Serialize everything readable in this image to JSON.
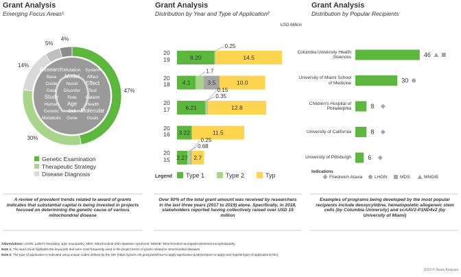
{
  "chart_data": [
    {
      "type": "pie",
      "title": "Grant Analysis",
      "subtitle": "Emerging Focus Areas¹",
      "categories": [
        "Genetic Examination",
        "Therapeutic Strategy",
        "Disease Diagnosis",
        null,
        null
      ],
      "values": [
        47,
        30,
        14,
        5,
        4
      ],
      "value_labels": [
        "47%",
        "30%",
        "14%",
        "5%",
        "4%"
      ],
      "colors": [
        "#5cb83c",
        "#a8d58a",
        "#d9d9d9",
        "#bfbfbf",
        "#8c8c8c"
      ],
      "word_cloud": [
        "Research",
        "Mutation",
        "System",
        "Base",
        "Model",
        "Affect",
        "Oxide",
        "Novel",
        "Effect",
        "Data",
        "Disorder",
        "Test",
        "Study",
        "Role",
        "Patient",
        "Human",
        "Age",
        "Health",
        "Genetic",
        "Cell",
        "Molecular",
        "Metabolic",
        "Gene",
        "Goals"
      ]
    },
    {
      "type": "bar",
      "horizontal": true,
      "stacked": true,
      "title": "Grant Analysis",
      "subtitle": "Distribution by Year and Type of Application²",
      "unit_label": "USD Million",
      "legend_title": "Legend",
      "categories": [
        "2019",
        "2018",
        "2017",
        "2016",
        "2015"
      ],
      "xlim": [
        0,
        24
      ],
      "series": [
        {
          "name": "Type 1",
          "color": "#5cb83c",
          "values": [
            8.2,
            4.1,
            6.21,
            3.22,
            2.27
          ],
          "value_labels": [
            "8.20",
            "4.1",
            "6.21",
            "3.22",
            "2.27"
          ]
        },
        {
          "name": "Type 2",
          "color": "#a8d58a",
          "values": [
            0.25,
            1.7,
            0.35,
            null,
            0.68
          ],
          "value_labels": [
            "0.25",
            "1.7",
            "0.35",
            null,
            "0.68"
          ]
        },
        {
          "name": null,
          "color": "#a6a6a6",
          "values": [
            null,
            3.5,
            0.15,
            null,
            0.25
          ],
          "value_labels": [
            null,
            "3.5",
            "0.15",
            null,
            "0.25"
          ]
        },
        {
          "name": "Typ",
          "color": "#ffd44f",
          "values": [
            14.5,
            10,
            12.8,
            11.5,
            2.7
          ],
          "value_labels": [
            "14.5",
            "10.0",
            "12.8",
            "11.5",
            "2.7"
          ]
        }
      ]
    },
    {
      "type": "bar",
      "horizontal": true,
      "title": "Grant Analysis",
      "subtitle": "Distribution by Popular Recipients",
      "categories": [
        "Columbia University Health Sciences",
        "University of Miami School of Medicine",
        "Children's Hospital of Philadelphia",
        "University of California",
        "University of Pittsburgh"
      ],
      "values": [
        46,
        30,
        8,
        8,
        6
      ],
      "color": "#5cb83c",
      "xlim": [
        0,
        50
      ],
      "legend_title": "Indications",
      "indications": [
        "Friedreich Ataxia",
        "LHON",
        "MDS",
        "MNGIE"
      ]
    }
  ],
  "captions": [
    "A review of prevalent trends related to award of grants indicates that substantial capital is being invested in projects focused on determining the genetic cause of various mitochondrial disease",
    "Over 50% of the total grant amount was received by researchers in the last three years (2017 to 2019) alone. Specifically, in 2018, stakeholders reported having collectively raised over USD 15 million",
    "Examples of programs being developed by the most popular recipients include deoxycytidine, hematopoietic allogeneic stem cells (by Columbia University) and scAAV2-P1ND4v2 (by University of Miami)"
  ],
  "notes": [
    {
      "label": "Abbreviations:",
      "text": "LHON: Leber's hereditary optic neuropathy; MDS: Mitochondrial DNA depletion syndrome; MNGIE: Mitochondrial neurogastrointestinal encephalopathy"
    },
    {
      "label": "Note 1:",
      "text": "The word cloud highlights the keywords that were most frequently used in the project terms of grants related to mitochondrial diseases"
    },
    {
      "label": "Note 2:",
      "text": "The type of application is indicated using unique codes defined by the NIH (https://grants.nih.gov/grants/how-to-apply-application-guide/prepare-to-apply-and-register/type-of-applications.htm)"
    }
  ],
  "footer": "2019 © Roots Analysis"
}
